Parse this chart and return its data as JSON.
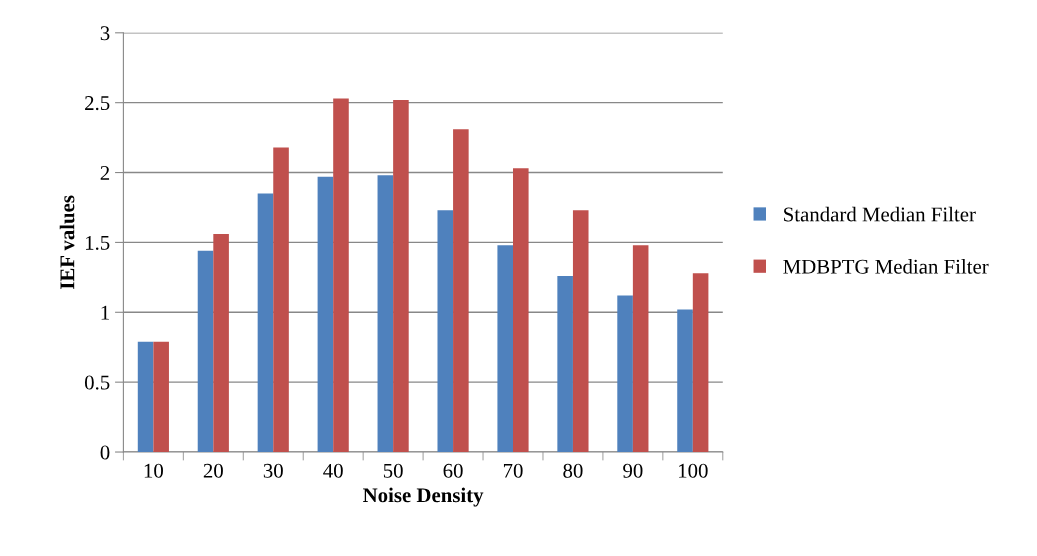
{
  "chart_data": {
    "type": "bar",
    "xlabel": "Noise Density",
    "ylabel": "IEF values",
    "categories": [
      "10",
      "20",
      "30",
      "40",
      "50",
      "60",
      "70",
      "80",
      "90",
      "100"
    ],
    "series": [
      {
        "name": "Standard Median Filter",
        "color": "#4f81bd",
        "values": [
          0.79,
          1.44,
          1.85,
          1.97,
          1.98,
          1.73,
          1.48,
          1.26,
          1.12,
          1.02
        ]
      },
      {
        "name": "MDBPTG Median Filter",
        "color": "#c0504d",
        "values": [
          0.79,
          1.56,
          2.18,
          2.53,
          2.52,
          2.31,
          2.03,
          1.73,
          1.48,
          1.28
        ]
      }
    ],
    "ylim": [
      0,
      3
    ],
    "yticks": [
      0,
      0.5,
      1,
      1.5,
      2,
      2.5,
      3
    ],
    "grid": "y",
    "legend": "right"
  }
}
